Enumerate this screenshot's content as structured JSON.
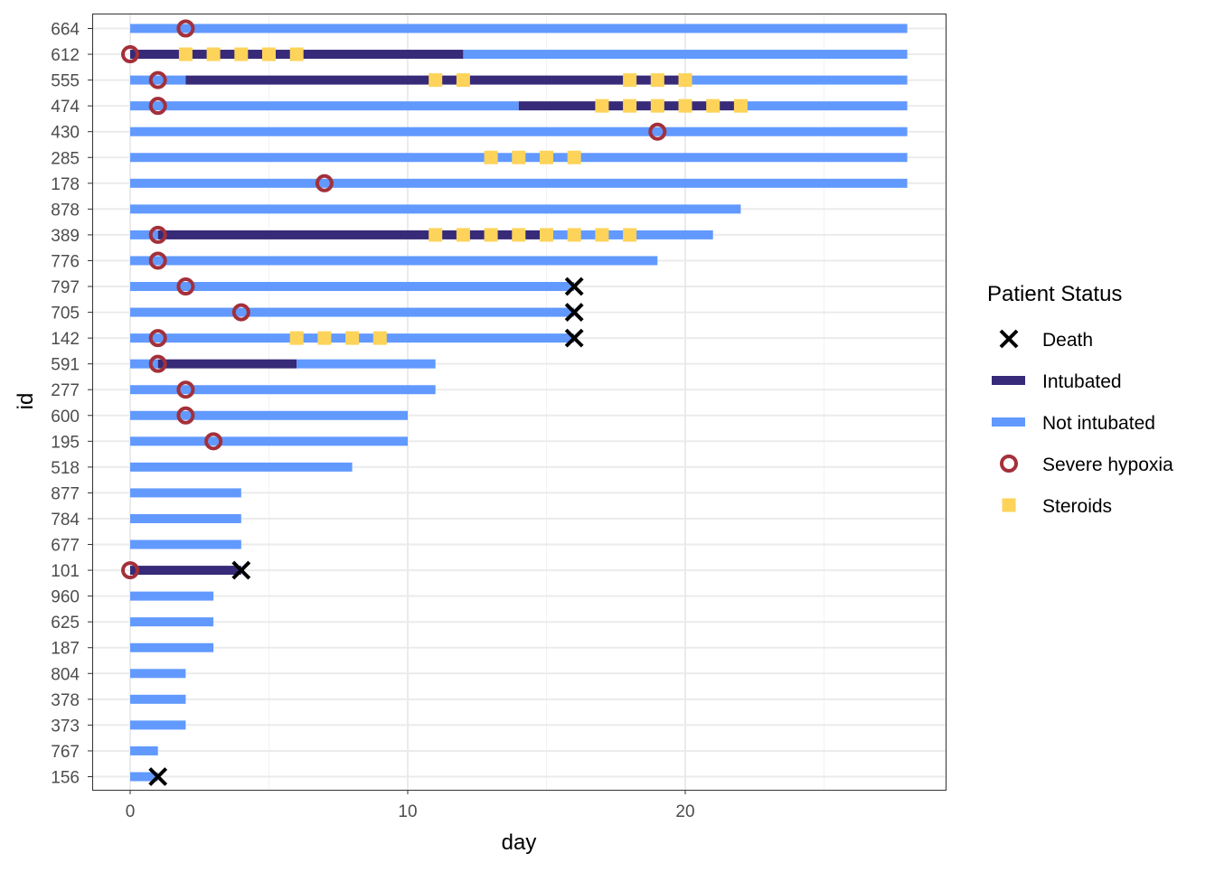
{
  "chart_data": {
    "type": "swimmer",
    "xlabel": "day",
    "ylabel": "id",
    "xlim": [
      -1.4,
      29.4
    ],
    "x_ticks": [
      0,
      10,
      20
    ],
    "grid": true,
    "legend": {
      "title": "Patient Status",
      "position": "right",
      "items": [
        {
          "key": "death",
          "label": "Death",
          "color": "#000000",
          "shape": "x"
        },
        {
          "key": "intubated",
          "label": "Intubated",
          "color": "#372a78",
          "shape": "line"
        },
        {
          "key": "not_intubated",
          "label": "Not intubated",
          "color": "#6199ff",
          "shape": "line"
        },
        {
          "key": "hypoxia",
          "label": "Severe hypoxia",
          "color": "#a3303a",
          "shape": "ring"
        },
        {
          "key": "steroids",
          "label": "Steroids",
          "color": "#fdd35a",
          "shape": "square"
        }
      ]
    },
    "rows": [
      {
        "id": "664",
        "segments": [
          [
            0,
            28,
            "not_intubated"
          ]
        ],
        "hypoxia": [
          2
        ],
        "steroids": [],
        "death": null
      },
      {
        "id": "612",
        "segments": [
          [
            0,
            12,
            "intubated"
          ],
          [
            12,
            28,
            "not_intubated"
          ]
        ],
        "hypoxia": [
          0
        ],
        "steroids": [
          2,
          3,
          4,
          5,
          6
        ],
        "death": null
      },
      {
        "id": "555",
        "segments": [
          [
            0,
            2,
            "not_intubated"
          ],
          [
            2,
            20,
            "intubated"
          ],
          [
            20,
            28,
            "not_intubated"
          ]
        ],
        "hypoxia": [
          1
        ],
        "steroids": [
          11,
          12,
          18,
          19,
          20
        ],
        "death": null
      },
      {
        "id": "474",
        "segments": [
          [
            0,
            14,
            "not_intubated"
          ],
          [
            14,
            22,
            "intubated"
          ],
          [
            22,
            28,
            "not_intubated"
          ]
        ],
        "hypoxia": [
          1
        ],
        "steroids": [
          17,
          18,
          19,
          20,
          21,
          22
        ],
        "death": null
      },
      {
        "id": "430",
        "segments": [
          [
            0,
            28,
            "not_intubated"
          ]
        ],
        "hypoxia": [
          19
        ],
        "steroids": [],
        "death": null
      },
      {
        "id": "285",
        "segments": [
          [
            0,
            28,
            "not_intubated"
          ]
        ],
        "hypoxia": [],
        "steroids": [
          13,
          14,
          15,
          16
        ],
        "death": null
      },
      {
        "id": "178",
        "segments": [
          [
            0,
            28,
            "not_intubated"
          ]
        ],
        "hypoxia": [
          7
        ],
        "steroids": [],
        "death": null
      },
      {
        "id": "878",
        "segments": [
          [
            0,
            22,
            "not_intubated"
          ]
        ],
        "hypoxia": [],
        "steroids": [],
        "death": null
      },
      {
        "id": "389",
        "segments": [
          [
            0,
            1,
            "not_intubated"
          ],
          [
            1,
            15,
            "intubated"
          ],
          [
            15,
            21,
            "not_intubated"
          ]
        ],
        "hypoxia": [
          1
        ],
        "steroids": [
          11,
          12,
          13,
          14,
          15,
          16,
          17,
          18
        ],
        "death": null
      },
      {
        "id": "776",
        "segments": [
          [
            0,
            19,
            "not_intubated"
          ]
        ],
        "hypoxia": [
          1
        ],
        "steroids": [],
        "death": null
      },
      {
        "id": "797",
        "segments": [
          [
            0,
            16,
            "not_intubated"
          ]
        ],
        "hypoxia": [
          2
        ],
        "steroids": [],
        "death": 16
      },
      {
        "id": "705",
        "segments": [
          [
            0,
            16,
            "not_intubated"
          ]
        ],
        "hypoxia": [
          4
        ],
        "steroids": [],
        "death": 16
      },
      {
        "id": "142",
        "segments": [
          [
            0,
            16,
            "not_intubated"
          ]
        ],
        "hypoxia": [
          1
        ],
        "steroids": [
          6,
          7,
          8,
          9
        ],
        "death": 16
      },
      {
        "id": "591",
        "segments": [
          [
            0,
            1,
            "not_intubated"
          ],
          [
            1,
            6,
            "intubated"
          ],
          [
            6,
            11,
            "not_intubated"
          ]
        ],
        "hypoxia": [
          1
        ],
        "steroids": [],
        "death": null
      },
      {
        "id": "277",
        "segments": [
          [
            0,
            11,
            "not_intubated"
          ]
        ],
        "hypoxia": [
          2
        ],
        "steroids": [],
        "death": null
      },
      {
        "id": "600",
        "segments": [
          [
            0,
            10,
            "not_intubated"
          ]
        ],
        "hypoxia": [
          2
        ],
        "steroids": [],
        "death": null
      },
      {
        "id": "195",
        "segments": [
          [
            0,
            10,
            "not_intubated"
          ]
        ],
        "hypoxia": [
          3
        ],
        "steroids": [],
        "death": null
      },
      {
        "id": "518",
        "segments": [
          [
            0,
            8,
            "not_intubated"
          ]
        ],
        "hypoxia": [],
        "steroids": [],
        "death": null
      },
      {
        "id": "877",
        "segments": [
          [
            0,
            4,
            "not_intubated"
          ]
        ],
        "hypoxia": [],
        "steroids": [],
        "death": null
      },
      {
        "id": "784",
        "segments": [
          [
            0,
            4,
            "not_intubated"
          ]
        ],
        "hypoxia": [],
        "steroids": [],
        "death": null
      },
      {
        "id": "677",
        "segments": [
          [
            0,
            4,
            "not_intubated"
          ]
        ],
        "hypoxia": [],
        "steroids": [],
        "death": null
      },
      {
        "id": "101",
        "segments": [
          [
            0,
            4,
            "intubated"
          ]
        ],
        "hypoxia": [
          0
        ],
        "steroids": [],
        "death": 4
      },
      {
        "id": "960",
        "segments": [
          [
            0,
            3,
            "not_intubated"
          ]
        ],
        "hypoxia": [],
        "steroids": [],
        "death": null
      },
      {
        "id": "625",
        "segments": [
          [
            0,
            3,
            "not_intubated"
          ]
        ],
        "hypoxia": [],
        "steroids": [],
        "death": null
      },
      {
        "id": "187",
        "segments": [
          [
            0,
            3,
            "not_intubated"
          ]
        ],
        "hypoxia": [],
        "steroids": [],
        "death": null
      },
      {
        "id": "804",
        "segments": [
          [
            0,
            2,
            "not_intubated"
          ]
        ],
        "hypoxia": [],
        "steroids": [],
        "death": null
      },
      {
        "id": "378",
        "segments": [
          [
            0,
            2,
            "not_intubated"
          ]
        ],
        "hypoxia": [],
        "steroids": [],
        "death": null
      },
      {
        "id": "373",
        "segments": [
          [
            0,
            2,
            "not_intubated"
          ]
        ],
        "hypoxia": [],
        "steroids": [],
        "death": null
      },
      {
        "id": "767",
        "segments": [
          [
            0,
            1,
            "not_intubated"
          ]
        ],
        "hypoxia": [],
        "steroids": [],
        "death": null
      },
      {
        "id": "156",
        "segments": [
          [
            0,
            1,
            "not_intubated"
          ]
        ],
        "hypoxia": [],
        "steroids": [],
        "death": 1
      }
    ]
  }
}
